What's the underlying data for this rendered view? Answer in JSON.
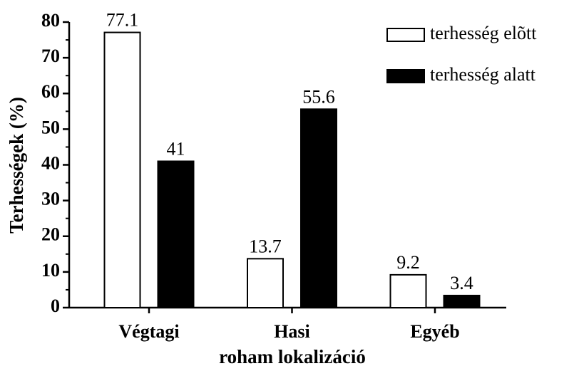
{
  "chart_data": {
    "type": "bar",
    "categories": [
      "Végtagi",
      "Hasi",
      "Egyéb"
    ],
    "series": [
      {
        "name": "terhesség elõtt",
        "color": "#ffffff",
        "values": [
          77.1,
          13.7,
          9.2
        ]
      },
      {
        "name": "terhesség alatt",
        "color": "#000000",
        "values": [
          41,
          55.6,
          3.4
        ]
      }
    ],
    "ylabel": "Terhességek (%)",
    "xlabel": "roham lokalizáció",
    "ylim": [
      0,
      80
    ],
    "yticks": [
      0,
      10,
      20,
      30,
      40,
      50,
      60,
      70,
      80
    ],
    "minor_yticks": [
      5,
      15,
      25,
      35,
      45,
      55,
      65,
      75
    ],
    "legend": "upper right"
  }
}
